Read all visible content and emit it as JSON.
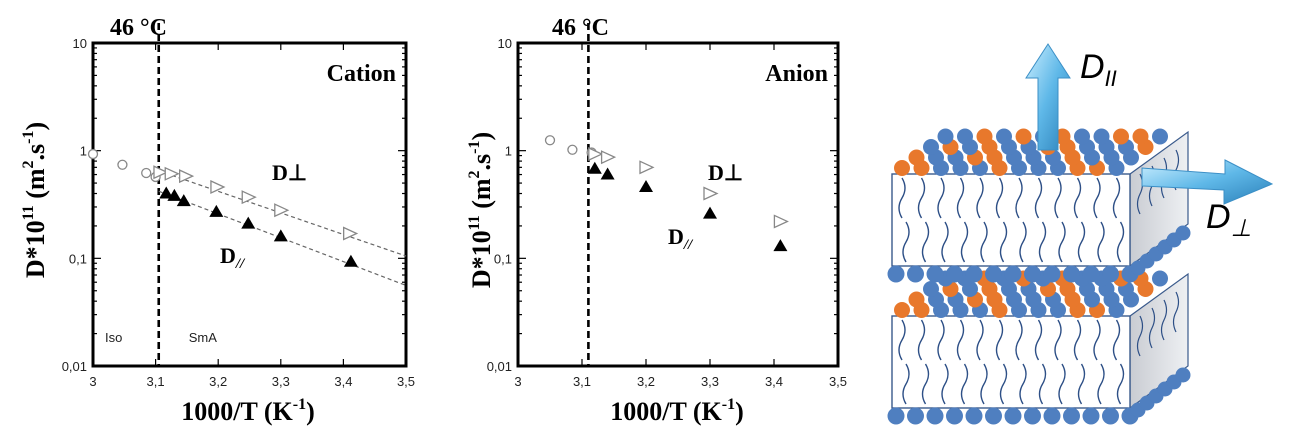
{
  "colors": {
    "frame": "#000000",
    "filled_marker": "#000000",
    "open_marker": "#888888",
    "membrane_orange": "#e8782c",
    "membrane_blue": "#4f7fc0",
    "arrow": "#5fb8e8"
  },
  "chart_data": [
    {
      "type": "scatter",
      "title": "",
      "panel_label": "Cation",
      "transition_label": "46 °C",
      "transition_x": 3.105,
      "xlabel": "1000/T (K",
      "xlabel_sup": "-1",
      "xlabel_end": ")",
      "ylabel": "D*10",
      "ylabel_sup": "11",
      "ylabel_units": "(m",
      "ylabel_units_sup": "2",
      "ylabel_units_mid": ".s",
      "ylabel_units_sup2": "-1",
      "ylabel_units_end": ")",
      "xlim": [
        3.0,
        3.5
      ],
      "ylim": [
        0.01,
        10
      ],
      "yscale": "log",
      "grid": false,
      "x_ticks": [
        "3",
        "3,1",
        "3,2",
        "3,3",
        "3,4",
        "3,5"
      ],
      "y_ticks": [
        "0,01",
        "0,1",
        "1",
        "10"
      ],
      "region_labels": [
        "Iso",
        "SmA"
      ],
      "series": [
        {
          "name": "",
          "marker": "open-circle",
          "x": [
            3.0,
            3.047,
            3.085,
            3.1
          ],
          "y": [
            0.93,
            0.74,
            0.62,
            0.57
          ]
        },
        {
          "name": "D⊥",
          "marker": "open-triangle-right",
          "x": [
            3.107,
            3.125,
            3.148,
            3.198,
            3.248,
            3.3,
            3.41
          ],
          "y": [
            0.63,
            0.61,
            0.58,
            0.46,
            0.37,
            0.28,
            0.17
          ]
        },
        {
          "name": "D//",
          "marker": "filled-triangle",
          "x": [
            3.117,
            3.13,
            3.145,
            3.197,
            3.248,
            3.3,
            3.412
          ],
          "y": [
            0.4,
            0.38,
            0.34,
            0.27,
            0.21,
            0.16,
            0.093
          ]
        }
      ],
      "fits": [
        {
          "x": [
            3.105,
            3.5
          ],
          "y": [
            0.65,
            0.105
          ]
        },
        {
          "x": [
            3.105,
            3.5
          ],
          "y": [
            0.42,
            0.056
          ]
        }
      ]
    },
    {
      "type": "scatter",
      "title": "",
      "panel_label": "Anion",
      "transition_label": "46 °C",
      "transition_x": 3.11,
      "xlabel": "1000/T (K",
      "xlabel_sup": "-1",
      "xlabel_end": ")",
      "ylabel": "D*10",
      "ylabel_sup": "11",
      "ylabel_units": "(m",
      "ylabel_units_sup": "2",
      "ylabel_units_mid": ".s",
      "ylabel_units_sup2": "-1",
      "ylabel_units_end": ")",
      "xlim": [
        3.0,
        3.5
      ],
      "ylim": [
        0.01,
        10
      ],
      "yscale": "log",
      "grid": false,
      "x_ticks": [
        "3",
        "3,1",
        "3,2",
        "3,3",
        "3,4",
        "3,5"
      ],
      "y_ticks": [
        "0,01",
        "0,1",
        "1",
        "10"
      ],
      "series": [
        {
          "name": "",
          "marker": "open-circle",
          "x": [
            3.05,
            3.085,
            3.115
          ],
          "y": [
            1.25,
            1.02,
            0.96
          ]
        },
        {
          "name": "D⊥",
          "marker": "open-triangle-right",
          "x": [
            3.12,
            3.14,
            3.2,
            3.3,
            3.41
          ],
          "y": [
            0.93,
            0.87,
            0.7,
            0.4,
            0.22
          ]
        },
        {
          "name": "D//",
          "marker": "filled-triangle",
          "x": [
            3.12,
            3.14,
            3.2,
            3.3,
            3.41
          ],
          "y": [
            0.68,
            0.6,
            0.46,
            0.26,
            0.13
          ]
        }
      ]
    }
  ],
  "diagram": {
    "label_parallel": "D",
    "label_parallel_sub": "II",
    "label_perp": "D",
    "label_perp_sub": "⊥"
  }
}
